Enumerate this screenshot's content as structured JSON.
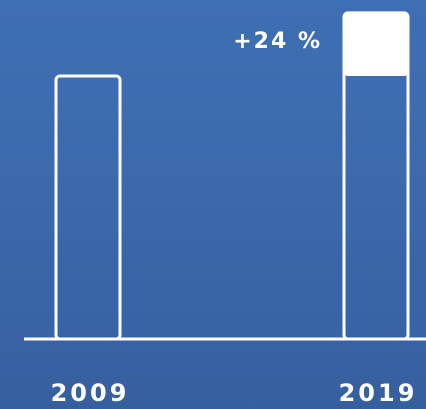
{
  "chart_data": {
    "type": "bar",
    "categories": [
      "2009",
      "2019"
    ],
    "values": [
      100,
      124
    ],
    "annotations": [
      {
        "category": "2019",
        "text": "+24 %"
      }
    ],
    "style": {
      "background": "#3b68ab",
      "stroke": "#ffffff",
      "increase_fill": "#ffffff"
    }
  }
}
